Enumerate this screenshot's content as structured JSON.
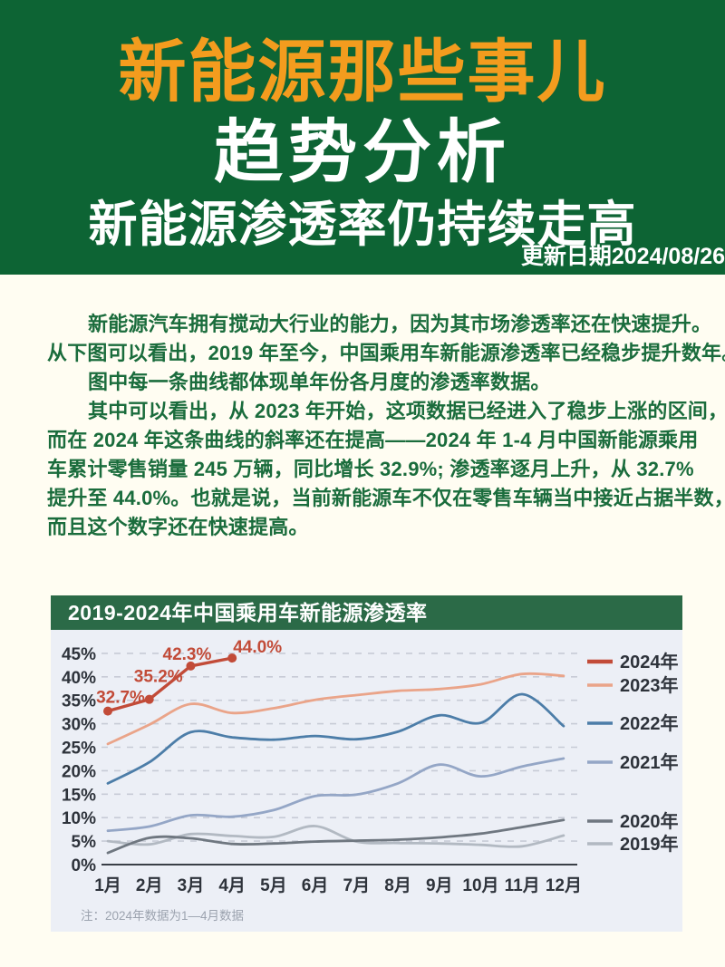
{
  "header": {
    "title_line1": "新能源那些事儿",
    "title_line2": "趋势分析",
    "title_line3": "新能源渗透率仍持续走高",
    "update_date": "更新日期2024/08/26"
  },
  "article": {
    "lines": [
      {
        "text": "新能源汽车拥有搅动大行业的能力，因为其市场渗透率还在快速提升。",
        "indent": true
      },
      {
        "text": "从下图可以看出，2019 年至今，中国乘用车新能源渗透率已经稳步提升数年。",
        "indent": false
      },
      {
        "text": "图中每一条曲线都体现单年份各月度的渗透率数据。",
        "indent": true
      },
      {
        "text": "其中可以看出，从 2023 年开始，这项数据已经进入了稳步上涨的区间，",
        "indent": true
      },
      {
        "text": "而在 2024 年这条曲线的斜率还在提高——2024 年 1-4 月中国新能源乘用",
        "indent": false
      },
      {
        "text": "车累计零售销量 245 万辆，同比增长 32.9%; 渗透率逐月上升，从 32.7%",
        "indent": false
      },
      {
        "text": "提升至 44.0%。也就是说，当前新能源车不仅在零售车辆当中接近占据半数，",
        "indent": false
      },
      {
        "text": "而且这个数字还在快速提高。",
        "indent": false
      }
    ]
  },
  "chart": {
    "title": "2019-2024年中国乘用车新能源渗透率",
    "note": "注：2024年数据为1—4月数据"
  },
  "chart_data": {
    "type": "line",
    "title": "2019-2024年中国乘用车新能源渗透率",
    "x": [
      "1月",
      "2月",
      "3月",
      "4月",
      "5月",
      "6月",
      "7月",
      "8月",
      "9月",
      "10月",
      "11月",
      "12月"
    ],
    "yticks": [
      "0%",
      "5%",
      "10%",
      "15%",
      "20%",
      "25%",
      "30%",
      "35%",
      "40%",
      "45%"
    ],
    "ylim": [
      0,
      47
    ],
    "grid": true,
    "legend_position": "right",
    "series": [
      {
        "name": "2024年",
        "color": "#C24B38",
        "markers": true,
        "values": [
          32.7,
          35.2,
          42.3,
          44.0
        ],
        "point_labels": [
          "32.7%",
          "35.2%",
          "42.3%",
          "44.0%"
        ]
      },
      {
        "name": "2023年",
        "color": "#EAA489",
        "markers": false,
        "values": [
          25.7,
          29.8,
          34.2,
          32.3,
          33.3,
          35.1,
          36.1,
          37.0,
          37.4,
          38.4,
          40.6,
          40.2
        ]
      },
      {
        "name": "2022年",
        "color": "#4C7DA8",
        "markers": false,
        "values": [
          17.3,
          21.8,
          28.2,
          27.1,
          26.6,
          27.4,
          26.7,
          28.3,
          31.8,
          30.2,
          36.3,
          29.5
        ]
      },
      {
        "name": "2021年",
        "color": "#94A6C6",
        "markers": false,
        "values": [
          7.2,
          8.1,
          10.5,
          10.2,
          11.6,
          14.6,
          14.9,
          17.3,
          21.3,
          18.8,
          20.9,
          22.6
        ]
      },
      {
        "name": "2020年",
        "color": "#6F7780",
        "markers": false,
        "values": [
          2.5,
          5.7,
          5.6,
          4.4,
          4.5,
          4.9,
          5.1,
          5.3,
          5.8,
          6.6,
          8.0,
          9.5
        ]
      },
      {
        "name": "2019年",
        "color": "#B2B9C2",
        "markers": false,
        "values": [
          5.0,
          4.3,
          6.5,
          6.1,
          5.9,
          8.2,
          4.9,
          4.6,
          4.5,
          4.2,
          3.9,
          6.2
        ]
      }
    ]
  },
  "theme": {
    "page_bg": "#FFFDF2",
    "header_green": "#0D6434",
    "chart_bar_green": "#2B6A47",
    "title_orange": "#F39C1E",
    "body_text_green": "#1A6C3C",
    "card_bg": "#ECEFF6",
    "grid_color": "#C7CBD6",
    "axis_color": "#3A3F47",
    "tick_color": "#2E333B",
    "note_color": "#9CA3AF"
  }
}
